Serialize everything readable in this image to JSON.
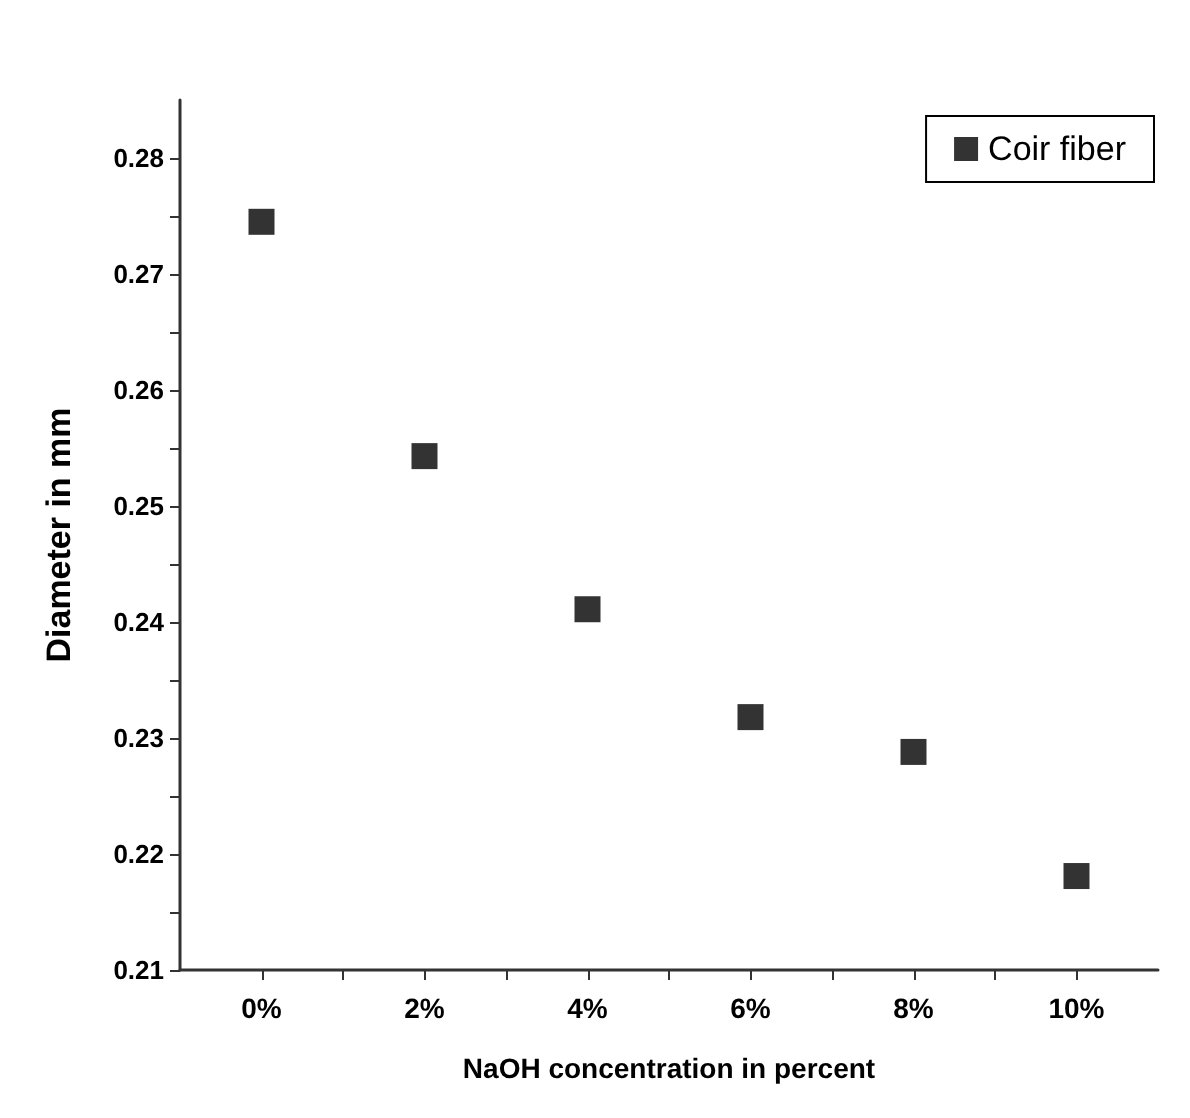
{
  "chart_data": {
    "type": "scatter",
    "xlabel": "NaOH concentration in percent",
    "ylabel": "Diameter in mm",
    "x": [
      0,
      2,
      4,
      6,
      8,
      10
    ],
    "series": [
      {
        "name": "Coir fiber",
        "color": "#000000",
        "values": [
          0.2745,
          0.2543,
          0.2411,
          0.2318,
          0.2288,
          0.2181
        ]
      }
    ],
    "xlim": [
      -1,
      11
    ],
    "xticks": [
      {
        "value": 0,
        "label": "0%"
      },
      {
        "value": 1,
        "label": null
      },
      {
        "value": 2,
        "label": "2%"
      },
      {
        "value": 3,
        "label": null
      },
      {
        "value": 4,
        "label": "4%"
      },
      {
        "value": 5,
        "label": null
      },
      {
        "value": 6,
        "label": "6%"
      },
      {
        "value": 7,
        "label": null
      },
      {
        "value": 8,
        "label": "8%"
      },
      {
        "value": 9,
        "label": null
      },
      {
        "value": 10,
        "label": "10%"
      }
    ],
    "ylim": [
      0.21,
      0.285
    ],
    "yticks": [
      0.21,
      {
        "value": 0.215,
        "label": null
      },
      0.22,
      {
        "value": 0.225,
        "label": null
      },
      0.23,
      {
        "value": 0.235,
        "label": null
      },
      0.24,
      {
        "value": 0.245,
        "label": null
      },
      0.25,
      {
        "value": 0.255,
        "label": null
      },
      0.26,
      {
        "value": 0.265,
        "label": null
      },
      0.27,
      {
        "value": 0.275,
        "label": null
      },
      0.28
    ],
    "grid": false,
    "legend": "top right",
    "marker": "square"
  }
}
